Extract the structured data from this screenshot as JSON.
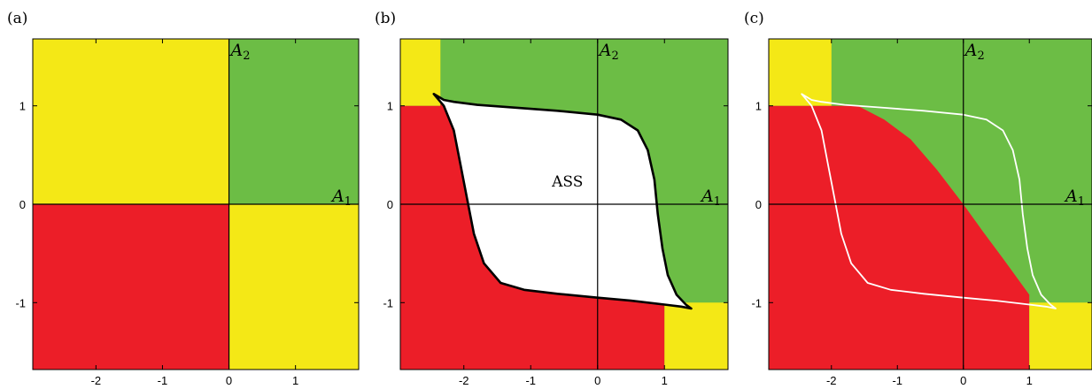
{
  "colors": {
    "yellow": "#f4e816",
    "green": "#6cbd45",
    "red": "#ec1e28",
    "white": "#ffffff",
    "black": "#000000"
  },
  "axes": {
    "x_range": [
      -2.95,
      1.95
    ],
    "y_range": [
      -1.68,
      1.68
    ],
    "x_ticks": [
      {
        "v": -2,
        "label": "-2"
      },
      {
        "v": -1,
        "label": "-1"
      },
      {
        "v": 0,
        "label": "0"
      },
      {
        "v": 1,
        "label": "1"
      }
    ],
    "y_ticks": [
      {
        "v": 1,
        "label": "1"
      },
      {
        "v": 0,
        "label": "0"
      },
      {
        "v": -1,
        "label": "-1"
      }
    ],
    "x_label": "A",
    "x_label_sub": "1",
    "y_label": "A",
    "y_label_sub": "2"
  },
  "panels": [
    {
      "label": "(a)",
      "regions": [
        {
          "color": "yellow",
          "points": [
            [
              -2.95,
              0
            ],
            [
              0,
              0
            ],
            [
              0,
              1.68
            ],
            [
              -2.95,
              1.68
            ]
          ]
        },
        {
          "color": "green",
          "points": [
            [
              0,
              0
            ],
            [
              1.95,
              0
            ],
            [
              1.95,
              1.68
            ],
            [
              0,
              1.68
            ]
          ]
        },
        {
          "color": "red",
          "points": [
            [
              -2.95,
              -1.68
            ],
            [
              0,
              -1.68
            ],
            [
              0,
              0
            ],
            [
              -2.95,
              0
            ]
          ]
        },
        {
          "color": "yellow",
          "points": [
            [
              0,
              -1.68
            ],
            [
              1.95,
              -1.68
            ],
            [
              1.95,
              0
            ],
            [
              0,
              0
            ]
          ]
        }
      ]
    },
    {
      "label": "(b)",
      "region_label": "ASS",
      "region_label_pos": [
        -0.45,
        0.18
      ],
      "regions": [
        {
          "color": "green",
          "points": [
            [
              -2.95,
              -1.68
            ],
            [
              1.95,
              -1.68
            ],
            [
              1.95,
              1.68
            ],
            [
              -2.95,
              1.68
            ]
          ]
        },
        {
          "color": "yellow",
          "points": [
            [
              -2.95,
              1.0
            ],
            [
              -2.35,
              1.0
            ],
            [
              -2.35,
              1.68
            ],
            [
              -2.95,
              1.68
            ]
          ]
        },
        {
          "color": "red",
          "points": [
            [
              -2.95,
              -1.68
            ],
            [
              1.0,
              -1.68
            ],
            [
              1.0,
              -0.82
            ],
            [
              -2.35,
              1.05
            ],
            [
              -2.35,
              1.0
            ],
            [
              -2.95,
              1.0
            ]
          ]
        },
        {
          "color": "yellow",
          "points": [
            [
              1.0,
              -1.68
            ],
            [
              1.95,
              -1.68
            ],
            [
              1.95,
              -1.0
            ],
            [
              1.0,
              -1.0
            ]
          ]
        }
      ],
      "basin": {
        "fill": "white",
        "stroke": "black",
        "stroke_width": 2.6,
        "points": [
          [
            -2.45,
            1.12
          ],
          [
            -2.3,
            1.06
          ],
          [
            -2.15,
            1.04
          ],
          [
            -1.8,
            1.01
          ],
          [
            -1.2,
            0.98
          ],
          [
            -0.6,
            0.95
          ],
          [
            0,
            0.91
          ],
          [
            0.35,
            0.86
          ],
          [
            0.6,
            0.75
          ],
          [
            0.75,
            0.55
          ],
          [
            0.85,
            0.25
          ],
          [
            0.9,
            -0.1
          ],
          [
            0.97,
            -0.45
          ],
          [
            1.05,
            -0.72
          ],
          [
            1.18,
            -0.92
          ],
          [
            1.32,
            -1.02
          ],
          [
            1.4,
            -1.06
          ],
          [
            1.25,
            -1.04
          ],
          [
            1.0,
            -1.02
          ],
          [
            0.5,
            -0.98
          ],
          [
            0,
            -0.95
          ],
          [
            -0.6,
            -0.91
          ],
          [
            -1.1,
            -0.87
          ],
          [
            -1.45,
            -0.8
          ],
          [
            -1.7,
            -0.6
          ],
          [
            -1.85,
            -0.3
          ],
          [
            -1.95,
            0.05
          ],
          [
            -2.05,
            0.4
          ],
          [
            -2.15,
            0.75
          ],
          [
            -2.3,
            1.0
          ],
          [
            -2.45,
            1.12
          ]
        ]
      }
    },
    {
      "label": "(c)",
      "regions": [
        {
          "color": "green",
          "points": [
            [
              -2.95,
              -1.68
            ],
            [
              1.95,
              -1.68
            ],
            [
              1.95,
              1.68
            ],
            [
              -2.95,
              1.68
            ]
          ]
        },
        {
          "color": "yellow",
          "points": [
            [
              -2.95,
              1.0
            ],
            [
              -2.0,
              1.0
            ],
            [
              -2.0,
              1.68
            ],
            [
              -2.95,
              1.68
            ]
          ]
        },
        {
          "color": "red",
          "points": [
            [
              -2.95,
              -1.68
            ],
            [
              1.0,
              -1.68
            ],
            [
              1.0,
              -0.92
            ],
            [
              0.6,
              -0.55
            ],
            [
              0.3,
              -0.28
            ],
            [
              0,
              0
            ],
            [
              -0.4,
              0.35
            ],
            [
              -0.8,
              0.66
            ],
            [
              -1.2,
              0.86
            ],
            [
              -1.6,
              1.0
            ],
            [
              -2.95,
              1.0
            ]
          ]
        },
        {
          "color": "yellow",
          "points": [
            [
              1.0,
              -1.68
            ],
            [
              1.95,
              -1.68
            ],
            [
              1.95,
              -1.0
            ],
            [
              1.0,
              -1.0
            ]
          ]
        }
      ],
      "basin": {
        "fill": "none",
        "stroke": "white",
        "stroke_width": 1.8,
        "points": [
          [
            -2.45,
            1.12
          ],
          [
            -2.3,
            1.06
          ],
          [
            -2.15,
            1.04
          ],
          [
            -1.8,
            1.01
          ],
          [
            -1.2,
            0.98
          ],
          [
            -0.6,
            0.95
          ],
          [
            0,
            0.91
          ],
          [
            0.35,
            0.86
          ],
          [
            0.6,
            0.75
          ],
          [
            0.75,
            0.55
          ],
          [
            0.85,
            0.25
          ],
          [
            0.9,
            -0.1
          ],
          [
            0.97,
            -0.45
          ],
          [
            1.05,
            -0.72
          ],
          [
            1.18,
            -0.92
          ],
          [
            1.32,
            -1.02
          ],
          [
            1.4,
            -1.06
          ],
          [
            1.25,
            -1.04
          ],
          [
            1.0,
            -1.02
          ],
          [
            0.5,
            -0.98
          ],
          [
            0,
            -0.95
          ],
          [
            -0.6,
            -0.91
          ],
          [
            -1.1,
            -0.87
          ],
          [
            -1.45,
            -0.8
          ],
          [
            -1.7,
            -0.6
          ],
          [
            -1.85,
            -0.3
          ],
          [
            -1.95,
            0.05
          ],
          [
            -2.05,
            0.4
          ],
          [
            -2.15,
            0.75
          ],
          [
            -2.3,
            1.0
          ],
          [
            -2.45,
            1.12
          ]
        ]
      }
    }
  ]
}
